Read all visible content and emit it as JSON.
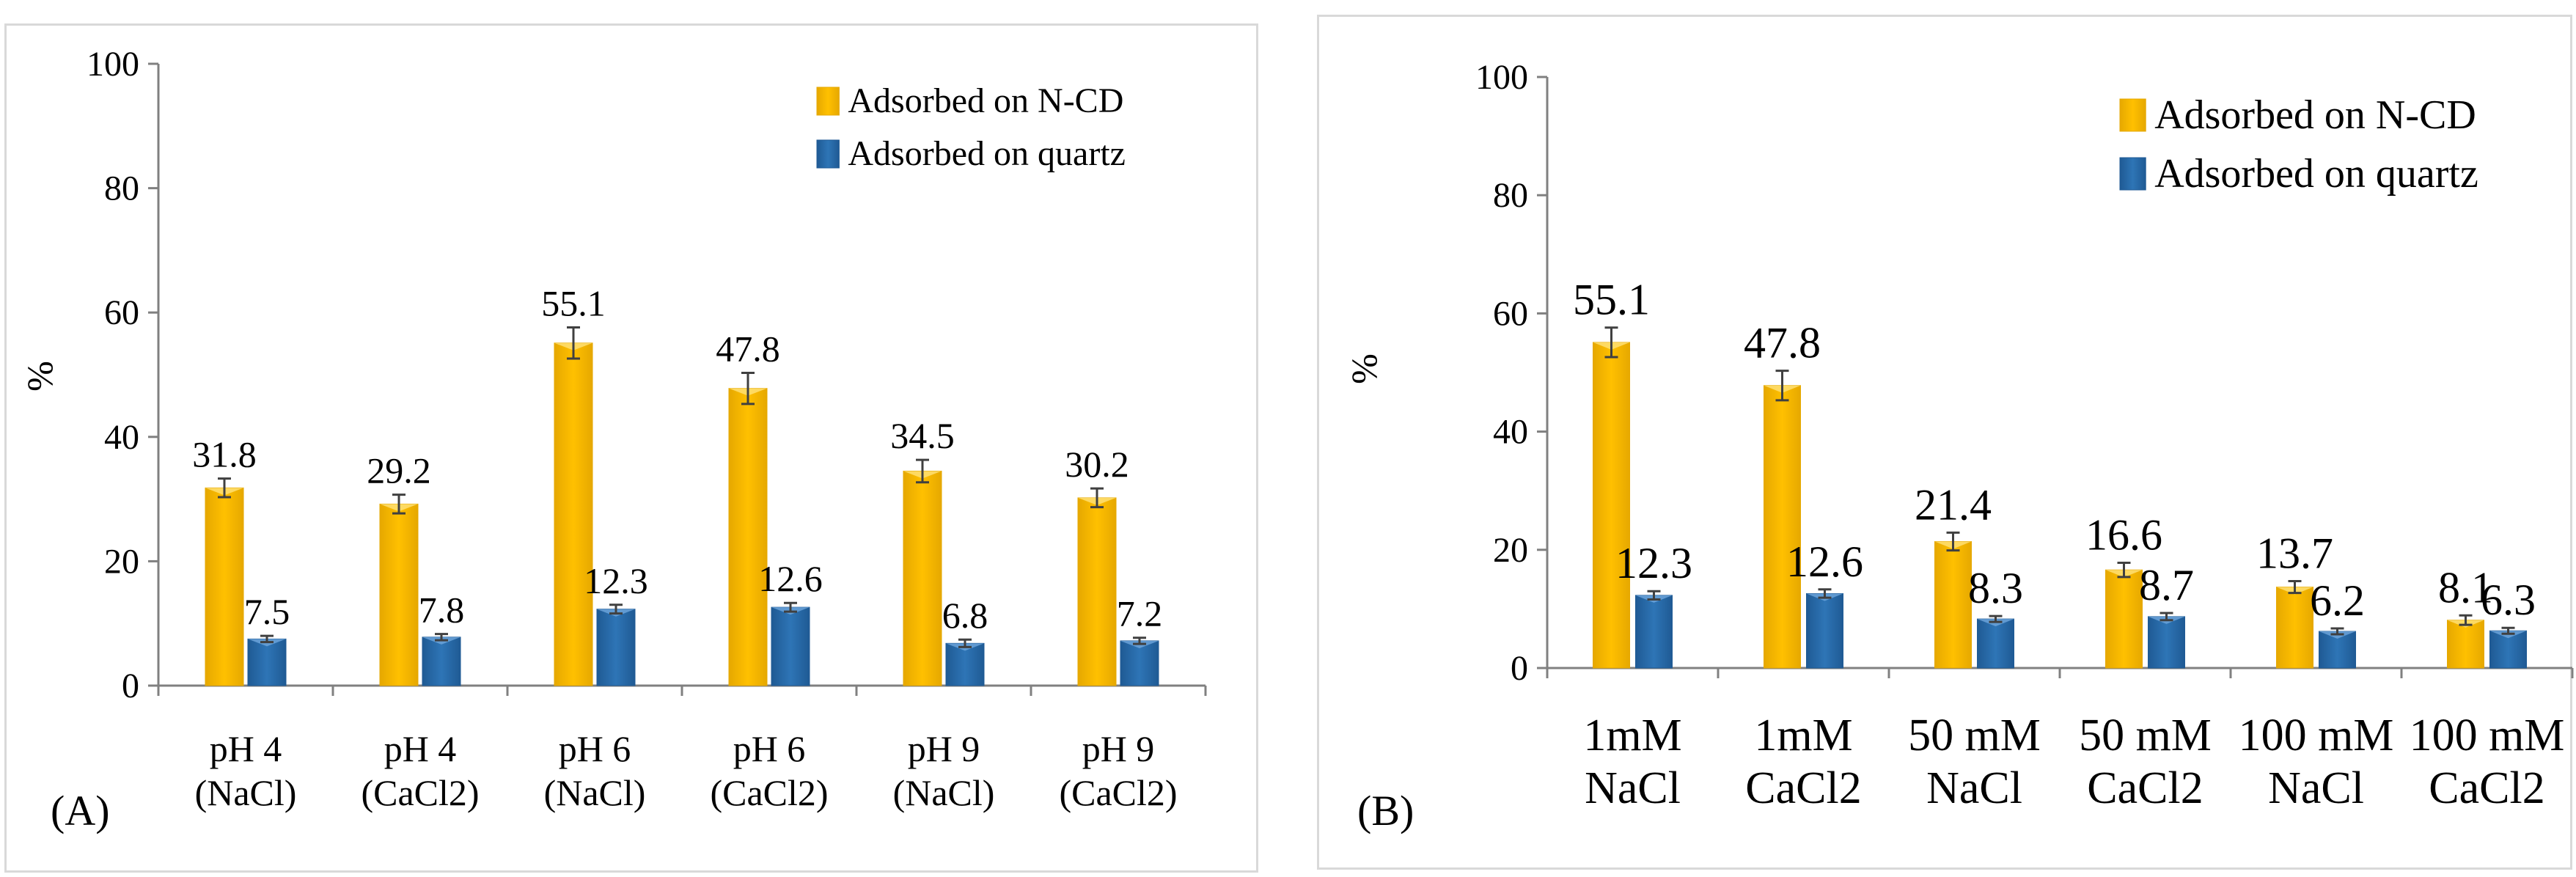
{
  "colors": {
    "ncd": "#ffc000",
    "ncd_dark": "#e6a800",
    "quartz": "#2e75b6",
    "quartz_dark": "#1f5a94",
    "axis": "#808080",
    "error": "#404040"
  },
  "chart_data": [
    {
      "type": "bar",
      "panel_label": "(A)",
      "ylabel": "%",
      "ylim": [
        0,
        100
      ],
      "yticks": [
        "0",
        "20",
        "40",
        "60",
        "80",
        "100"
      ],
      "categories": [
        [
          "pH 4",
          "(NaCl)"
        ],
        [
          "pH 4",
          "(CaCl2)"
        ],
        [
          "pH 6",
          "(NaCl)"
        ],
        [
          "pH 6",
          "(CaCl2)"
        ],
        [
          "pH 9",
          "(NaCl)"
        ],
        [
          "pH 9",
          "(CaCl2)"
        ]
      ],
      "series": [
        {
          "name": "Adsorbed on N-CD",
          "values": [
            31.8,
            29.2,
            55.1,
            47.8,
            34.5,
            30.2
          ],
          "labels": [
            "31.8",
            "29.2",
            "55.1",
            "47.8",
            "34.5",
            "30.2"
          ],
          "errors": [
            1.5,
            1.5,
            2.5,
            2.5,
            1.8,
            1.5
          ]
        },
        {
          "name": "Adsorbed on quartz",
          "values": [
            7.5,
            7.8,
            12.3,
            12.6,
            6.8,
            7.2
          ],
          "labels": [
            "7.5",
            "7.8",
            "12.3",
            "12.6",
            "6.8",
            "7.2"
          ],
          "errors": [
            0.5,
            0.5,
            0.7,
            0.7,
            0.6,
            0.5
          ]
        }
      ],
      "legend_position": "top-right"
    },
    {
      "type": "bar",
      "panel_label": "(B)",
      "ylabel": "%",
      "ylim": [
        0,
        100
      ],
      "yticks": [
        "0",
        "20",
        "40",
        "60",
        "80",
        "100"
      ],
      "categories": [
        [
          "1mM",
          "NaCl"
        ],
        [
          "1mM",
          "CaCl2"
        ],
        [
          "50 mM",
          "NaCl"
        ],
        [
          "50 mM",
          "CaCl2"
        ],
        [
          "100 mM",
          "NaCl"
        ],
        [
          "100 mM",
          "CaCl2"
        ]
      ],
      "series": [
        {
          "name": "Adsorbed on N-CD",
          "values": [
            55.1,
            47.8,
            21.4,
            16.6,
            13.7,
            8.1
          ],
          "labels": [
            "55.1",
            "47.8",
            "21.4",
            "16.6",
            "13.7",
            "8.1"
          ],
          "errors": [
            2.5,
            2.5,
            1.5,
            1.2,
            1.0,
            0.8
          ]
        },
        {
          "name": "Adsorbed on quartz",
          "values": [
            12.3,
            12.6,
            8.3,
            8.7,
            6.2,
            6.3
          ],
          "labels": [
            "12.3",
            "12.6",
            "8.3",
            "8.7",
            "6.2",
            "6.3"
          ],
          "errors": [
            0.7,
            0.7,
            0.5,
            0.6,
            0.5,
            0.5
          ]
        }
      ],
      "legend_position": "top-right"
    }
  ]
}
